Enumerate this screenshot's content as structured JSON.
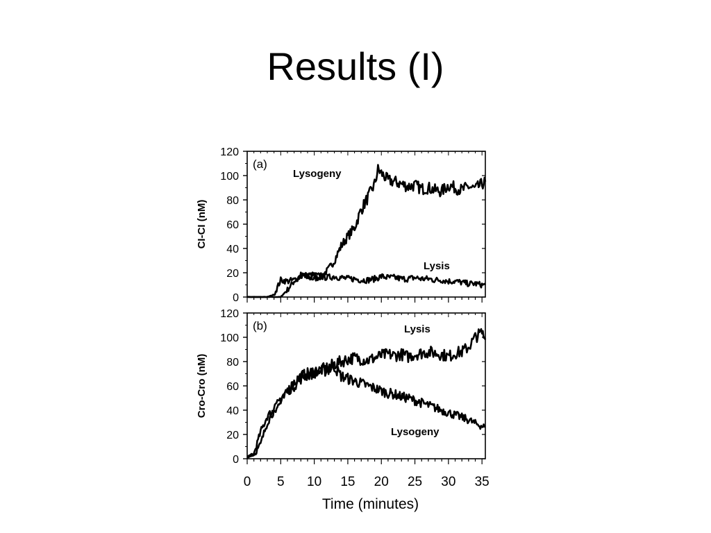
{
  "slide": {
    "title": "Results (I)"
  },
  "chart_data": [
    {
      "type": "line",
      "panel_label": "(a)",
      "xlabel": "Time  (minutes)",
      "ylabel": "CI-CI (nM)",
      "xlim": [
        0,
        35.5
      ],
      "ylim": [
        0,
        120
      ],
      "yticks": [
        0,
        20,
        40,
        60,
        80,
        100,
        120
      ],
      "series": [
        {
          "name": "Lysogeny",
          "x": [
            0,
            3,
            4,
            5,
            6,
            7,
            8,
            9,
            10,
            11,
            12,
            13,
            14,
            15,
            16,
            17,
            18,
            19,
            19.5,
            20,
            21,
            22,
            23,
            24,
            25,
            26,
            27,
            28,
            29,
            30,
            31,
            32,
            33,
            34,
            35,
            35.5
          ],
          "values": [
            0,
            0,
            0,
            0,
            6,
            13,
            18,
            16,
            15,
            17,
            22,
            30,
            42,
            50,
            57,
            72,
            82,
            93,
            105,
            102,
            96,
            95,
            93,
            91,
            92,
            89,
            90,
            88,
            87,
            92,
            90,
            88,
            91,
            89,
            93,
            95
          ]
        },
        {
          "name": "Lysis",
          "x": [
            0,
            3,
            4,
            5,
            6,
            7,
            8,
            9,
            10,
            11,
            12,
            13,
            14,
            15,
            16,
            17,
            18,
            19,
            20,
            21,
            22,
            23,
            24,
            25,
            26,
            27,
            28,
            29,
            30,
            31,
            32,
            33,
            34,
            35,
            35.5
          ],
          "values": [
            0,
            0,
            2,
            14,
            13,
            14,
            17,
            18,
            18,
            17,
            16,
            17,
            16,
            15,
            15,
            14,
            14,
            15,
            17,
            16,
            16,
            15,
            15,
            16,
            15,
            15,
            14,
            14,
            13,
            13,
            12,
            11,
            11,
            10,
            10
          ]
        }
      ]
    },
    {
      "type": "line",
      "panel_label": "(b)",
      "xlabel": "Time  (minutes)",
      "ylabel": "Cro-Cro (nM)",
      "xlim": [
        0,
        35.5
      ],
      "ylim": [
        0,
        120
      ],
      "yticks": [
        0,
        20,
        40,
        60,
        80,
        100,
        120
      ],
      "xticks": [
        0,
        5,
        10,
        15,
        20,
        25,
        30,
        35
      ],
      "series": [
        {
          "name": "Lysis",
          "x": [
            0,
            1,
            2,
            3,
            4,
            5,
            6,
            7,
            8,
            9,
            10,
            11,
            12,
            13,
            14,
            15,
            16,
            17,
            18,
            19,
            20,
            21,
            22,
            23,
            24,
            25,
            26,
            27,
            28,
            29,
            30,
            31,
            32,
            33,
            34,
            35,
            35.5
          ],
          "values": [
            2,
            4,
            22,
            35,
            40,
            46,
            55,
            63,
            68,
            70,
            72,
            73,
            75,
            78,
            80,
            82,
            83,
            82,
            81,
            83,
            85,
            86,
            85,
            86,
            84,
            86,
            87,
            88,
            87,
            86,
            84,
            87,
            88,
            92,
            100,
            104,
            98
          ]
        },
        {
          "name": "Lysogeny",
          "x": [
            0,
            1,
            2,
            3,
            4,
            5,
            6,
            7,
            8,
            9,
            10,
            11,
            12,
            13,
            14,
            15,
            16,
            17,
            18,
            19,
            20,
            21,
            22,
            23,
            24,
            25,
            26,
            27,
            28,
            29,
            30,
            31,
            32,
            33,
            34,
            35,
            35.5
          ],
          "values": [
            1,
            3,
            12,
            30,
            40,
            50,
            56,
            60,
            66,
            69,
            71,
            72,
            73,
            76,
            68,
            66,
            64,
            62,
            60,
            58,
            56,
            54,
            53,
            51,
            50,
            48,
            46,
            44,
            42,
            40,
            38,
            36,
            34,
            32,
            29,
            27,
            26
          ]
        }
      ]
    }
  ],
  "series_label_positions": []
}
